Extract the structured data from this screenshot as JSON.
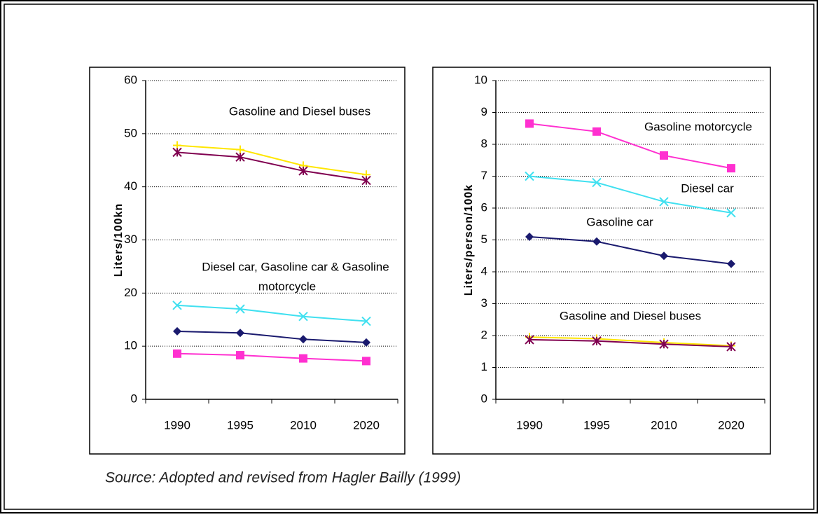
{
  "chart_data": [
    {
      "type": "line",
      "ylabel": "Liters/100kn",
      "categories": [
        "1990",
        "1995",
        "2010",
        "2020"
      ],
      "ylim": [
        0,
        60
      ],
      "yticks": [
        0,
        10,
        20,
        30,
        40,
        50,
        60
      ],
      "grid": true,
      "annotations": [
        "Gasoline and Diesel buses",
        "Diesel car, Gasoline car & Gasoline",
        "motorcycle"
      ],
      "series": [
        {
          "color": "#ffe600",
          "marker": "star",
          "values": [
            47.8,
            47,
            44,
            42.3
          ]
        },
        {
          "color": "#800050",
          "marker": "asterisk",
          "values": [
            46.5,
            45.6,
            43,
            41.2
          ]
        },
        {
          "color": "#40e0f0",
          "marker": "x",
          "values": [
            17.7,
            17,
            15.6,
            14.7
          ]
        },
        {
          "color": "#1a1a6e",
          "marker": "diamond",
          "values": [
            12.8,
            12.5,
            11.3,
            10.7
          ]
        },
        {
          "color": "#ff30d0",
          "marker": "square",
          "values": [
            8.6,
            8.3,
            7.7,
            7.2
          ]
        }
      ]
    },
    {
      "type": "line",
      "ylabel": "Liters/person/100k",
      "categories": [
        "1990",
        "1995",
        "2010",
        "2020"
      ],
      "ylim": [
        0,
        10
      ],
      "yticks": [
        0,
        1,
        2,
        3,
        4,
        5,
        6,
        7,
        8,
        9,
        10
      ],
      "grid": true,
      "annotations": [
        "Gasoline motorcycle",
        "Diesel car",
        "Gasoline car",
        "Gasoline and Diesel buses"
      ],
      "series": [
        {
          "color": "#ff30d0",
          "marker": "square",
          "values": [
            8.65,
            8.4,
            7.65,
            7.25
          ]
        },
        {
          "color": "#40e0f0",
          "marker": "x",
          "values": [
            7.0,
            6.8,
            6.2,
            5.85
          ]
        },
        {
          "color": "#1a1a6e",
          "marker": "diamond",
          "values": [
            5.1,
            4.95,
            4.5,
            4.25
          ]
        },
        {
          "color": "#ffe600",
          "marker": "star",
          "values": [
            1.95,
            1.9,
            1.78,
            1.68
          ]
        },
        {
          "color": "#800050",
          "marker": "asterisk",
          "values": [
            1.87,
            1.83,
            1.73,
            1.65
          ]
        }
      ]
    }
  ],
  "source": "Source: Adopted and revised from Hagler Bailly (1999)"
}
